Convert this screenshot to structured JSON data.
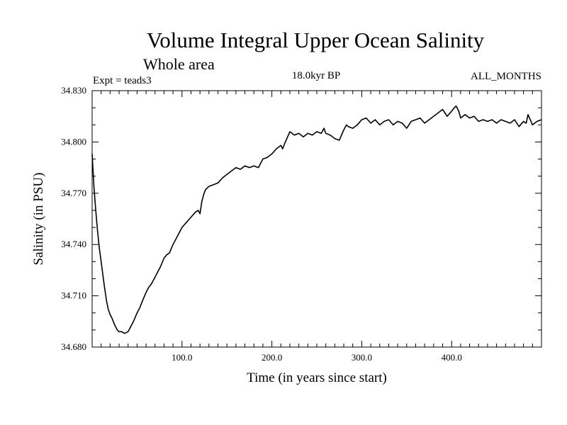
{
  "chart_data": {
    "type": "line",
    "title": "Volume Integral Upper Ocean Salinity",
    "subtitle": "Whole area",
    "experiment_label": "Expt = teads3",
    "period_label": "18.0kyr BP",
    "months_label": "ALL_MONTHS",
    "xlabel": "Time (in years since start)",
    "ylabel": "Salinity (in PSU)",
    "xlim": [
      0,
      500
    ],
    "ylim": [
      34.68,
      34.83
    ],
    "x_ticks": [
      100,
      200,
      300,
      400
    ],
    "x_tick_labels": [
      "100.0",
      "200.0",
      "300.0",
      "400.0"
    ],
    "y_ticks": [
      34.68,
      34.71,
      34.74,
      34.77,
      34.8,
      34.83
    ],
    "y_tick_labels": [
      "34.680",
      "34.710",
      "34.740",
      "34.770",
      "34.800",
      "34.830"
    ],
    "series": [
      {
        "name": "Salinity",
        "x": [
          0,
          2,
          4,
          6,
          8,
          10,
          12,
          14,
          16,
          18,
          20,
          22,
          25,
          28,
          30,
          33,
          36,
          40,
          43,
          46,
          50,
          53,
          56,
          60,
          63,
          66,
          70,
          73,
          76,
          80,
          83,
          86,
          90,
          95,
          100,
          105,
          110,
          115,
          118,
          120,
          122,
          124,
          126,
          130,
          135,
          140,
          145,
          150,
          155,
          160,
          165,
          170,
          175,
          180,
          185,
          190,
          195,
          200,
          205,
          210,
          212,
          215,
          220,
          225,
          230,
          235,
          240,
          245,
          250,
          255,
          258,
          260,
          265,
          270,
          275,
          280,
          283,
          285,
          290,
          295,
          300,
          305,
          310,
          315,
          320,
          325,
          330,
          335,
          340,
          345,
          350,
          355,
          360,
          365,
          370,
          375,
          380,
          385,
          390,
          395,
          400,
          403,
          405,
          408,
          410,
          415,
          420,
          425,
          430,
          435,
          440,
          445,
          450,
          455,
          460,
          465,
          470,
          475,
          480,
          483,
          485,
          490,
          495,
          500
        ],
        "values": [
          34.793,
          34.774,
          34.76,
          34.748,
          34.738,
          34.73,
          34.722,
          34.714,
          34.707,
          34.702,
          34.699,
          34.697,
          34.693,
          34.69,
          34.689,
          34.689,
          34.688,
          34.689,
          34.692,
          34.695,
          34.7,
          34.703,
          34.707,
          34.712,
          34.715,
          34.717,
          34.721,
          34.724,
          34.727,
          34.732,
          34.734,
          34.735,
          34.74,
          34.745,
          34.75,
          34.753,
          34.756,
          34.759,
          34.76,
          34.758,
          34.765,
          34.769,
          34.772,
          34.774,
          34.775,
          34.776,
          34.779,
          34.781,
          34.783,
          34.785,
          34.784,
          34.786,
          34.785,
          34.786,
          34.785,
          34.79,
          34.791,
          34.793,
          34.796,
          34.798,
          34.796,
          34.8,
          34.806,
          34.804,
          34.805,
          34.803,
          34.805,
          34.804,
          34.806,
          34.805,
          34.808,
          34.805,
          34.804,
          34.802,
          34.801,
          34.807,
          34.81,
          34.809,
          34.808,
          34.81,
          34.813,
          34.814,
          34.811,
          34.813,
          34.81,
          34.812,
          34.813,
          34.81,
          34.812,
          34.811,
          34.808,
          34.812,
          34.813,
          34.814,
          34.811,
          34.813,
          34.815,
          34.817,
          34.819,
          34.815,
          34.818,
          34.82,
          34.821,
          34.818,
          34.814,
          34.816,
          34.814,
          34.815,
          34.812,
          34.813,
          34.812,
          34.813,
          34.811,
          34.813,
          34.812,
          34.811,
          34.813,
          34.809,
          34.812,
          34.811,
          34.816,
          34.81,
          34.812,
          34.813
        ]
      }
    ]
  }
}
